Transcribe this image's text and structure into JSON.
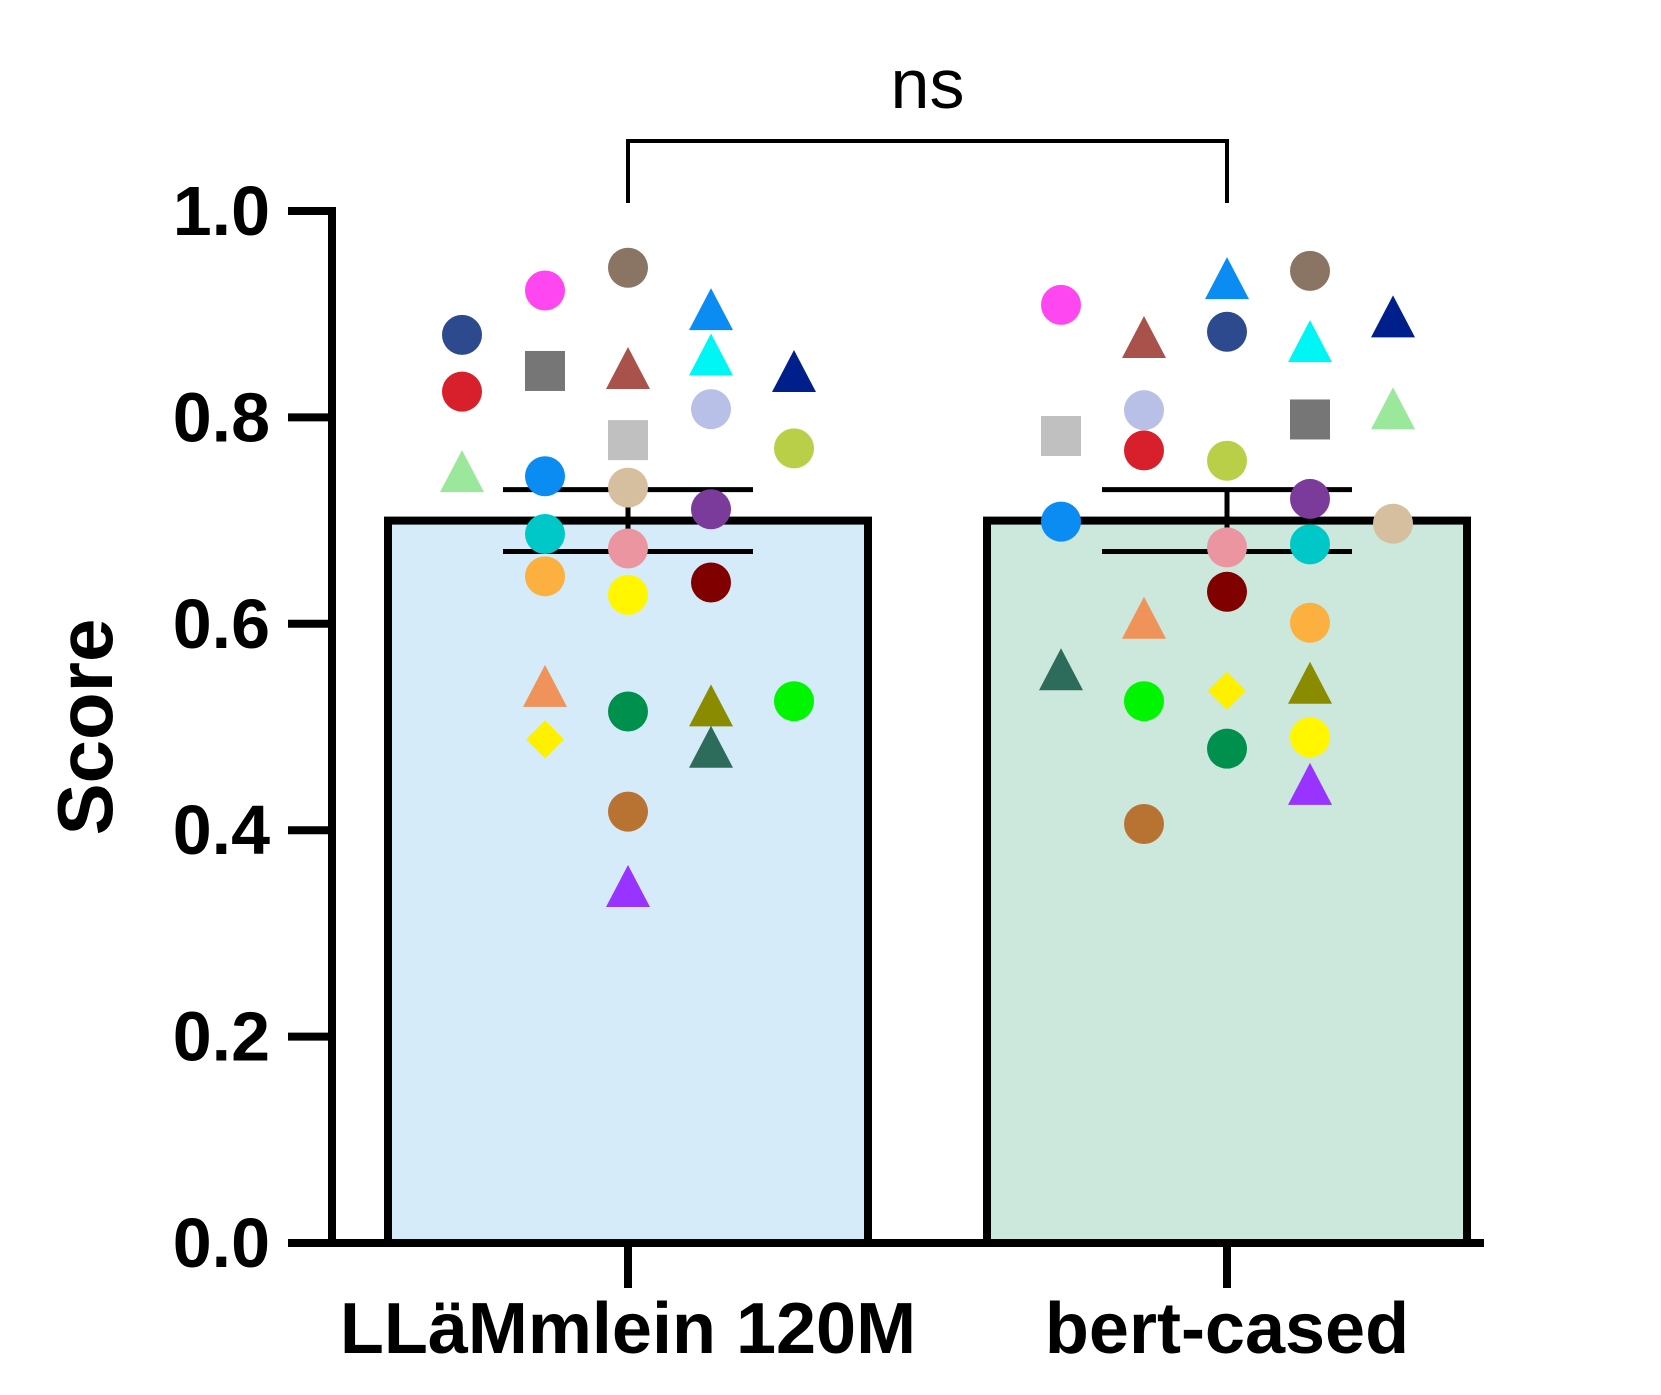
{
  "chart_data": {
    "type": "bar",
    "categories": [
      "LLäMmlein 120M",
      "bert-cased"
    ],
    "values": [
      0.7,
      0.7
    ],
    "error": [
      [
        0.67,
        0.73
      ],
      [
        0.67,
        0.73
      ]
    ],
    "bar_colors": [
      "#d6ebf9",
      "#cce7dc"
    ],
    "ylabel": "Score",
    "xlabel": "",
    "ylim": [
      0,
      1.0
    ],
    "yticks": [
      0.0,
      0.2,
      0.4,
      0.6,
      0.8,
      1.0
    ],
    "ytick_labels": [
      "0.0",
      "0.2",
      "0.4",
      "0.6",
      "0.8",
      "1.0"
    ],
    "significance": {
      "label": "ns",
      "between": [
        0,
        1
      ]
    },
    "points": [
      [
        {
          "y": 0.88,
          "dx": -2,
          "shape": "circle",
          "color": "#2e4a8e"
        },
        {
          "y": 0.825,
          "dx": -2,
          "shape": "circle",
          "color": "#d7202c"
        },
        {
          "y": 0.745,
          "dx": -2,
          "shape": "triangle",
          "color": "#9be89c"
        },
        {
          "y": 0.923,
          "dx": -1,
          "shape": "circle",
          "color": "#ff47f1"
        },
        {
          "y": 0.845,
          "dx": -1,
          "shape": "square",
          "color": "#767676"
        },
        {
          "y": 0.743,
          "dx": -1,
          "shape": "circle",
          "color": "#0a8cf2"
        },
        {
          "y": 0.687,
          "dx": -1,
          "shape": "circle",
          "color": "#00c8c8"
        },
        {
          "y": 0.646,
          "dx": -1,
          "shape": "circle",
          "color": "#fcb040"
        },
        {
          "y": 0.537,
          "dx": -1,
          "shape": "triangle",
          "color": "#f0935a"
        },
        {
          "y": 0.488,
          "dx": -1,
          "shape": "diamond",
          "color": "#fff000"
        },
        {
          "y": 0.945,
          "dx": 0,
          "shape": "circle",
          "color": "#8a7463"
        },
        {
          "y": 0.845,
          "dx": 0,
          "shape": "triangle",
          "color": "#a9524c"
        },
        {
          "y": 0.778,
          "dx": 0,
          "shape": "square",
          "color": "#c0c0c0"
        },
        {
          "y": 0.732,
          "dx": 0,
          "shape": "circle",
          "color": "#d6bf9f"
        },
        {
          "y": 0.673,
          "dx": 0,
          "shape": "circle",
          "color": "#ea95a0"
        },
        {
          "y": 0.628,
          "dx": 0,
          "shape": "circle",
          "color": "#fff600"
        },
        {
          "y": 0.515,
          "dx": 0,
          "shape": "circle",
          "color": "#00904e"
        },
        {
          "y": 0.418,
          "dx": 0,
          "shape": "circle",
          "color": "#b87333"
        },
        {
          "y": 0.343,
          "dx": 0,
          "shape": "triangle",
          "color": "#9933ff"
        },
        {
          "y": 0.902,
          "dx": 1,
          "shape": "triangle",
          "color": "#0a8cf2"
        },
        {
          "y": 0.858,
          "dx": 1,
          "shape": "triangle",
          "color": "#00f5f5"
        },
        {
          "y": 0.808,
          "dx": 1,
          "shape": "circle",
          "color": "#b8c0e8"
        },
        {
          "y": 0.711,
          "dx": 1,
          "shape": "circle",
          "color": "#7b3b9a"
        },
        {
          "y": 0.64,
          "dx": 1,
          "shape": "circle",
          "color": "#800000"
        },
        {
          "y": 0.518,
          "dx": 1,
          "shape": "triangle",
          "color": "#8b8b00"
        },
        {
          "y": 0.478,
          "dx": 1,
          "shape": "triangle",
          "color": "#2d6b5a"
        },
        {
          "y": 0.842,
          "dx": 2,
          "shape": "triangle",
          "color": "#001f8b"
        },
        {
          "y": 0.77,
          "dx": 2,
          "shape": "circle",
          "color": "#b9cf48"
        },
        {
          "y": 0.525,
          "dx": 2,
          "shape": "circle",
          "color": "#00f500"
        }
      ],
      [
        {
          "y": 0.909,
          "dx": -2,
          "shape": "circle",
          "color": "#ff47f1"
        },
        {
          "y": 0.782,
          "dx": -2,
          "shape": "square",
          "color": "#c0c0c0"
        },
        {
          "y": 0.699,
          "dx": -2,
          "shape": "circle",
          "color": "#0a8cf2"
        },
        {
          "y": 0.553,
          "dx": -2,
          "shape": "triangle",
          "color": "#2d6b5a"
        },
        {
          "y": 0.875,
          "dx": -1,
          "shape": "triangle",
          "color": "#a9524c"
        },
        {
          "y": 0.807,
          "dx": -1,
          "shape": "circle",
          "color": "#b8c0e8"
        },
        {
          "y": 0.768,
          "dx": -1,
          "shape": "circle",
          "color": "#d7202c"
        },
        {
          "y": 0.603,
          "dx": -1,
          "shape": "triangle",
          "color": "#f0935a"
        },
        {
          "y": 0.525,
          "dx": -1,
          "shape": "circle",
          "color": "#00f500"
        },
        {
          "y": 0.406,
          "dx": -1,
          "shape": "circle",
          "color": "#b87333"
        },
        {
          "y": 0.932,
          "dx": 0,
          "shape": "triangle",
          "color": "#0a8cf2"
        },
        {
          "y": 0.883,
          "dx": 0,
          "shape": "circle",
          "color": "#2e4a8e"
        },
        {
          "y": 0.758,
          "dx": 0,
          "shape": "circle",
          "color": "#b9cf48"
        },
        {
          "y": 0.674,
          "dx": 0,
          "shape": "circle",
          "color": "#ea95a0"
        },
        {
          "y": 0.631,
          "dx": 0,
          "shape": "circle",
          "color": "#800000"
        },
        {
          "y": 0.535,
          "dx": 0,
          "shape": "diamond",
          "color": "#fff000"
        },
        {
          "y": 0.479,
          "dx": 0,
          "shape": "circle",
          "color": "#00904e"
        },
        {
          "y": 0.942,
          "dx": 1,
          "shape": "circle",
          "color": "#8a7463"
        },
        {
          "y": 0.871,
          "dx": 1,
          "shape": "triangle",
          "color": "#00f5f5"
        },
        {
          "y": 0.798,
          "dx": 1,
          "shape": "square",
          "color": "#767676"
        },
        {
          "y": 0.721,
          "dx": 1,
          "shape": "circle",
          "color": "#7b3b9a"
        },
        {
          "y": 0.677,
          "dx": 1,
          "shape": "circle",
          "color": "#00c8c8"
        },
        {
          "y": 0.601,
          "dx": 1,
          "shape": "circle",
          "color": "#fcb040"
        },
        {
          "y": 0.54,
          "dx": 1,
          "shape": "triangle",
          "color": "#8b8b00"
        },
        {
          "y": 0.49,
          "dx": 1,
          "shape": "circle",
          "color": "#fff600"
        },
        {
          "y": 0.442,
          "dx": 1,
          "shape": "triangle",
          "color": "#9933ff"
        },
        {
          "y": 0.895,
          "dx": 2,
          "shape": "triangle",
          "color": "#001f8b"
        },
        {
          "y": 0.806,
          "dx": 2,
          "shape": "triangle",
          "color": "#9be89c"
        },
        {
          "y": 0.697,
          "dx": 2,
          "shape": "circle",
          "color": "#d6bf9f"
        }
      ]
    ]
  }
}
